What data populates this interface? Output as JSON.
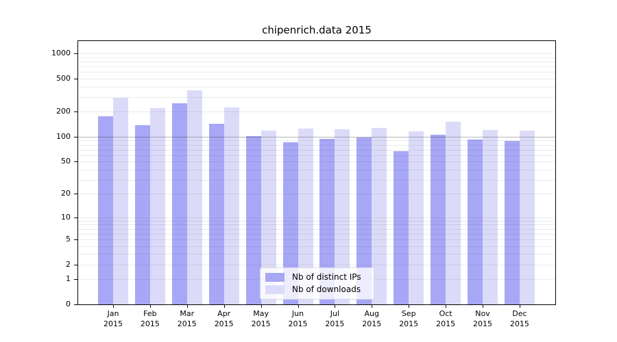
{
  "chart_data": {
    "type": "bar",
    "title": "chipenrich.data 2015",
    "y_scale": "log10(1+x)",
    "y_max": 1404,
    "y_ticks": [
      0,
      1,
      2,
      5,
      10,
      20,
      50,
      100,
      200,
      500,
      1000
    ],
    "y_minor_gridlines": [
      1,
      2,
      3,
      4,
      5,
      6,
      7,
      8,
      9,
      10,
      20,
      30,
      40,
      50,
      60,
      70,
      80,
      90,
      100,
      200,
      300,
      400,
      500,
      600,
      700,
      800,
      900,
      1000
    ],
    "emphasis_gridline": 100,
    "grid": true,
    "x_categories": [
      "Jan",
      "Feb",
      "Mar",
      "Apr",
      "May",
      "Jun",
      "Jul",
      "Aug",
      "Sep",
      "Oct",
      "Nov",
      "Dec"
    ],
    "x_year": "2015",
    "series": [
      {
        "name": "Nb of distinct IPs",
        "color": "#a7a7f6",
        "values": [
          176,
          138,
          251,
          144,
          101,
          85,
          95,
          97,
          67,
          106,
          92,
          89
        ]
      },
      {
        "name": "Nb of downloads",
        "color": "#dbdbf9",
        "values": [
          291,
          219,
          359,
          224,
          118,
          126,
          124,
          127,
          116,
          152,
          121,
          119
        ]
      }
    ],
    "legend_position": "bottom-center",
    "axis_color": "#000000",
    "background": "#ffffff"
  }
}
